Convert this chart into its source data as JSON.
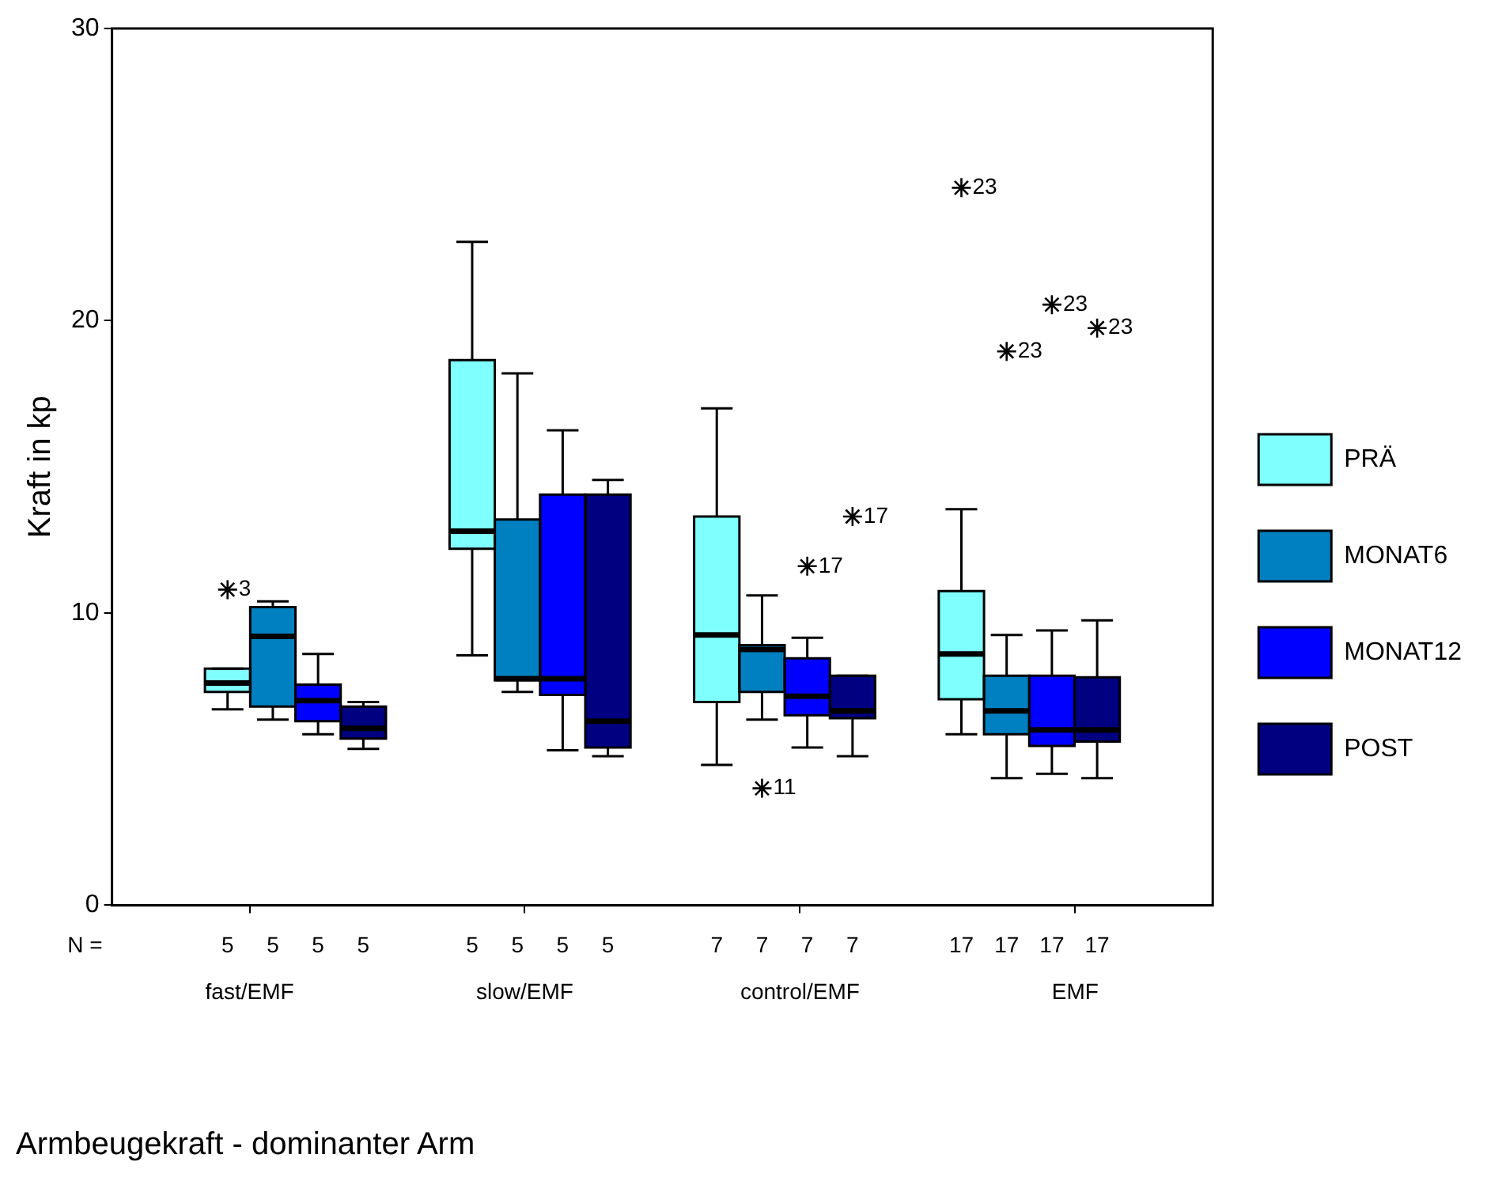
{
  "chart_data": {
    "type": "box",
    "title": "Armbeugekraft - dominanter Arm",
    "ylabel": "Kraft in kp",
    "categories": [
      "fast/EMF",
      "slow/EMF",
      "control/EMF",
      "EMF"
    ],
    "ylim": [
      0,
      30
    ],
    "yticks": [
      0,
      10,
      20,
      30
    ],
    "legend": "right",
    "series": [
      {
        "name": "PRÄ",
        "color": "#80ffff",
        "boxes": [
          {
            "low": 6.7,
            "q1": 7.3,
            "median": 7.6,
            "q3": 8.1,
            "high": 8.1,
            "outliers": [
              10.8
            ]
          },
          {
            "low": 8.55,
            "q1": 12.2,
            "median": 12.8,
            "q3": 18.65,
            "high": 22.7
          },
          {
            "low": 4.8,
            "q1": 6.95,
            "median": 9.25,
            "q3": 13.3,
            "high": 17.0
          },
          {
            "low": 5.85,
            "q1": 7.05,
            "median": 8.6,
            "q3": 10.75,
            "high": 13.55,
            "outliers": [
              24.55
            ]
          }
        ]
      },
      {
        "name": "MONAT6",
        "color": "#0080c0",
        "boxes": [
          {
            "low": 6.35,
            "q1": 6.8,
            "median": 9.2,
            "q3": 10.2,
            "high": 10.4
          },
          {
            "low": 7.3,
            "q1": 7.7,
            "median": 7.75,
            "q3": 13.2,
            "high": 18.2
          },
          {
            "low": 6.35,
            "q1": 7.3,
            "median": 8.75,
            "q3": 8.9,
            "high": 10.6,
            "outliers": [
              4.0
            ]
          },
          {
            "low": 4.35,
            "q1": 5.85,
            "median": 6.65,
            "q3": 7.85,
            "high": 9.25,
            "outliers": [
              18.95
            ]
          }
        ]
      },
      {
        "name": "MONAT12",
        "color": "#0000ff",
        "boxes": [
          {
            "low": 5.85,
            "q1": 6.3,
            "median": 7.0,
            "q3": 7.55,
            "high": 8.6
          },
          {
            "low": 5.3,
            "q1": 7.2,
            "median": 7.75,
            "q3": 14.05,
            "high": 16.25
          },
          {
            "low": 5.4,
            "q1": 6.5,
            "median": 7.15,
            "q3": 8.45,
            "high": 9.15,
            "outliers": [
              11.6
            ]
          },
          {
            "low": 4.5,
            "q1": 5.45,
            "median": 6.0,
            "q3": 7.85,
            "high": 9.4,
            "outliers": [
              20.55
            ]
          }
        ]
      },
      {
        "name": "POST",
        "color": "#000080",
        "boxes": [
          {
            "low": 5.35,
            "q1": 5.7,
            "median": 6.05,
            "q3": 6.8,
            "high": 6.95
          },
          {
            "low": 5.1,
            "q1": 5.4,
            "median": 6.3,
            "q3": 14.05,
            "high": 14.55
          },
          {
            "low": 5.1,
            "q1": 6.4,
            "median": 6.65,
            "q3": 7.85,
            "high": 7.85,
            "outliers": [
              13.3
            ]
          },
          {
            "low": 4.35,
            "q1": 5.6,
            "median": 6.0,
            "q3": 7.8,
            "high": 9.75,
            "outliers": [
              19.75
            ]
          }
        ]
      }
    ],
    "annotations": [
      "N =",
      "5",
      "5",
      "5",
      "5",
      "5",
      "5",
      "5",
      "5",
      "7",
      "7",
      "7",
      "7",
      "17",
      "17",
      "17",
      "17",
      "3",
      "23",
      "11",
      "23",
      "17",
      "23",
      "17",
      "23"
    ]
  }
}
